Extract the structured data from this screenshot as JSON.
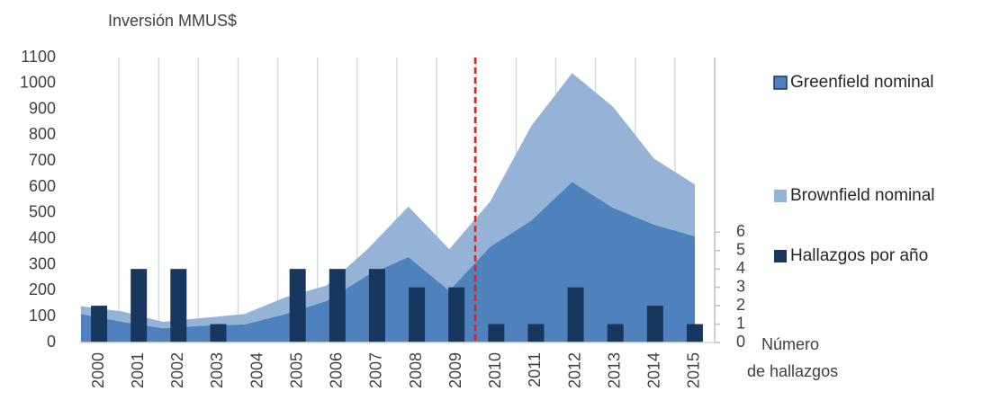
{
  "chart_data": {
    "type": "stacked-area-bar",
    "ylabel": "Inversión MMUS$",
    "y2label": [
      "Número",
      "de hallazgos"
    ],
    "categories": [
      "2000",
      "2001",
      "2002",
      "2003",
      "2004",
      "2005",
      "2006",
      "2007",
      "2008",
      "2009",
      "2010",
      "2011",
      "2012",
      "2013",
      "2014",
      "2015"
    ],
    "series": [
      {
        "name": "Greenfield nominal",
        "kind": "area",
        "color": "#4f81bd",
        "values": [
          110,
          80,
          55,
          65,
          70,
          110,
          160,
          260,
          330,
          200,
          370,
          470,
          620,
          520,
          455,
          410
        ]
      },
      {
        "name": "Brownfield nominal",
        "kind": "area",
        "color": "#95b3d7",
        "values": [
          30,
          40,
          25,
          30,
          40,
          65,
          60,
          100,
          195,
          160,
          175,
          365,
          420,
          390,
          255,
          200
        ]
      },
      {
        "name": "Hallazgos por año",
        "kind": "bar",
        "axis": "y2",
        "color": "#17375e",
        "values": [
          2,
          4,
          4,
          1,
          0,
          4,
          4,
          4,
          3,
          3,
          1,
          1,
          3,
          1,
          2,
          1
        ]
      }
    ],
    "ylim": [
      0,
      1100
    ],
    "yticks": [
      0,
      100,
      200,
      300,
      400,
      500,
      600,
      700,
      800,
      900,
      1000,
      1100
    ],
    "y2lim": [
      0,
      15.5
    ],
    "y2ticks": [
      0,
      1,
      2,
      3,
      4,
      5,
      6
    ],
    "xgrid": true,
    "legend": "right"
  }
}
